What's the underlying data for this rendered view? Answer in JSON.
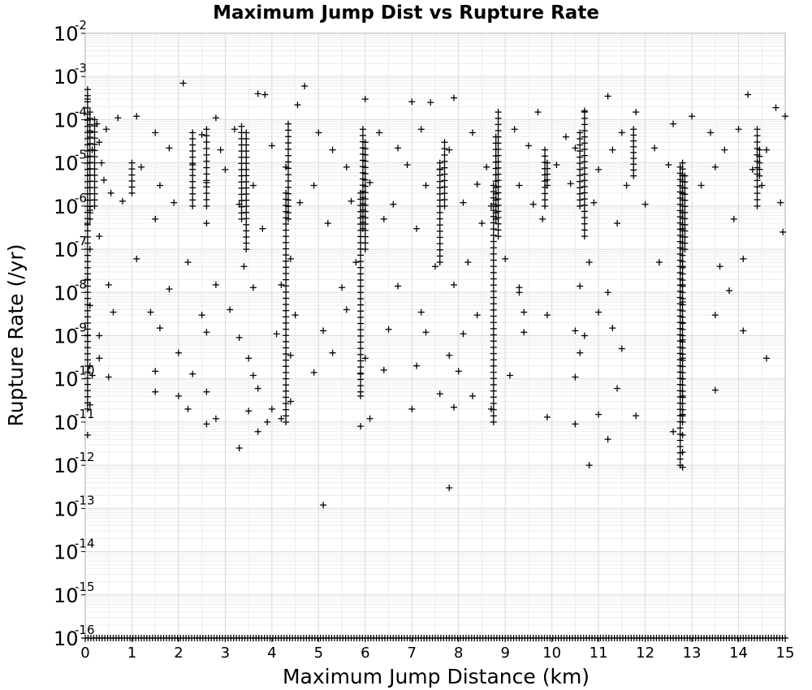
{
  "chart_data": {
    "type": "scatter",
    "title": "Maximum Jump Dist vs Rupture Rate",
    "xlabel": "Maximum Jump Distance (km)",
    "ylabel": "Rupture Rate (/yr)",
    "xlim": [
      0,
      15
    ],
    "ylim": [
      1e-16,
      0.01
    ],
    "yscale": "log",
    "grid": true,
    "marker": "plus",
    "marker_color": "#000000",
    "x_ticks": [
      "0",
      "1",
      "2",
      "3",
      "4",
      "5",
      "6",
      "7",
      "8",
      "9",
      "10",
      "11",
      "12",
      "13",
      "14",
      "15"
    ],
    "y_ticks": [
      {
        "base": "10",
        "exp": "-16"
      },
      {
        "base": "10",
        "exp": "-15"
      },
      {
        "base": "10",
        "exp": "-14"
      },
      {
        "base": "10",
        "exp": "-13"
      },
      {
        "base": "10",
        "exp": "-12"
      },
      {
        "base": "10",
        "exp": "-11"
      },
      {
        "base": "10",
        "exp": "-10"
      },
      {
        "base": "10",
        "exp": "-9"
      },
      {
        "base": "10",
        "exp": "-8"
      },
      {
        "base": "10",
        "exp": "-7"
      },
      {
        "base": "10",
        "exp": "-6"
      },
      {
        "base": "10",
        "exp": "-5"
      },
      {
        "base": "10",
        "exp": "-4"
      },
      {
        "base": "10",
        "exp": "-3"
      },
      {
        "base": "10",
        "exp": "-2"
      }
    ],
    "points": [
      [
        2.1,
        0.0007
      ],
      [
        4.7,
        0.0006
      ],
      [
        3.7,
        0.0004
      ],
      [
        3.85,
        0.00038
      ],
      [
        7.0,
        0.00026
      ],
      [
        7.4,
        0.00025
      ],
      [
        7.9,
        0.00032
      ],
      [
        11.2,
        0.00035
      ],
      [
        14.2,
        0.00038
      ],
      [
        6.0,
        0.0003
      ],
      [
        4.55,
        0.00022
      ],
      [
        1.1,
        0.00012
      ],
      [
        0.7,
        0.00011
      ],
      [
        2.8,
        0.00011
      ],
      [
        9.7,
        0.00015
      ],
      [
        10.7,
        0.00016
      ],
      [
        11.8,
        0.00015
      ],
      [
        14.8,
        0.00019
      ],
      [
        15.0,
        0.00012
      ],
      [
        13.0,
        0.00012
      ],
      [
        12.6,
        8e-05
      ],
      [
        1.5,
        5e-05
      ],
      [
        2.5,
        4.5e-05
      ],
      [
        3.2,
        6e-05
      ],
      [
        5.0,
        5e-05
      ],
      [
        6.3,
        5e-05
      ],
      [
        7.2,
        6e-05
      ],
      [
        8.3,
        5e-05
      ],
      [
        9.2,
        6e-05
      ],
      [
        10.3,
        4e-05
      ],
      [
        11.5,
        5e-05
      ],
      [
        13.4,
        5e-05
      ],
      [
        14.0,
        6e-05
      ],
      [
        1.8,
        2.2e-05
      ],
      [
        2.9,
        2e-05
      ],
      [
        4.0,
        2.5e-05
      ],
      [
        5.3,
        2e-05
      ],
      [
        6.7,
        2.2e-05
      ],
      [
        7.8,
        2e-05
      ],
      [
        9.5,
        2.5e-05
      ],
      [
        10.5,
        2.2e-05
      ],
      [
        11.3,
        2e-05
      ],
      [
        12.2,
        2.2e-05
      ],
      [
        13.7,
        2e-05
      ],
      [
        14.6,
        2e-05
      ],
      [
        1.2,
        8e-06
      ],
      [
        2.3,
        9e-06
      ],
      [
        3.0,
        7e-06
      ],
      [
        4.3,
        8e-06
      ],
      [
        5.6,
        8e-06
      ],
      [
        6.9,
        9e-06
      ],
      [
        7.6,
        7e-06
      ],
      [
        8.6,
        8e-06
      ],
      [
        10.1,
        9e-06
      ],
      [
        11.0,
        7e-06
      ],
      [
        12.5,
        9e-06
      ],
      [
        13.5,
        8e-06
      ],
      [
        14.3,
        7e-06
      ],
      [
        1.6,
        3e-06
      ],
      [
        2.6,
        3.5e-06
      ],
      [
        3.6,
        3e-06
      ],
      [
        4.9,
        3e-06
      ],
      [
        6.1,
        3.5e-06
      ],
      [
        7.3,
        3e-06
      ],
      [
        8.4,
        3.2e-06
      ],
      [
        9.3,
        3e-06
      ],
      [
        10.4,
        3.3e-06
      ],
      [
        11.6,
        3e-06
      ],
      [
        13.2,
        3e-06
      ],
      [
        14.5,
        3e-06
      ],
      [
        0.8,
        1.3e-06
      ],
      [
        1.9,
        1.2e-06
      ],
      [
        3.3,
        1.1e-06
      ],
      [
        4.6,
        1.2e-06
      ],
      [
        5.7,
        1.3e-06
      ],
      [
        6.6,
        1.1e-06
      ],
      [
        8.1,
        1.2e-06
      ],
      [
        9.6,
        1.1e-06
      ],
      [
        10.9,
        1.2e-06
      ],
      [
        12.0,
        1.1e-06
      ],
      [
        14.9,
        1.2e-06
      ],
      [
        1.5,
        5e-07
      ],
      [
        2.6,
        4e-07
      ],
      [
        3.8,
        3e-07
      ],
      [
        5.2,
        4e-07
      ],
      [
        6.4,
        5e-07
      ],
      [
        7.1,
        3e-07
      ],
      [
        8.5,
        4e-07
      ],
      [
        9.8,
        5e-07
      ],
      [
        11.4,
        4e-07
      ],
      [
        13.9,
        5e-07
      ],
      [
        14.95,
        2.5e-07
      ],
      [
        0.3,
        2e-07
      ],
      [
        1.1,
        6e-08
      ],
      [
        2.2,
        5e-08
      ],
      [
        3.4,
        4e-08
      ],
      [
        4.4,
        6e-08
      ],
      [
        5.8,
        5e-08
      ],
      [
        7.5,
        4e-08
      ],
      [
        8.2,
        5e-08
      ],
      [
        9.0,
        6e-08
      ],
      [
        10.8,
        5e-08
      ],
      [
        12.3,
        5e-08
      ],
      [
        13.6,
        4e-08
      ],
      [
        14.1,
        6e-08
      ],
      [
        0.5,
        1.5e-08
      ],
      [
        1.8,
        1.2e-08
      ],
      [
        2.8,
        1.5e-08
      ],
      [
        3.6,
        1.3e-08
      ],
      [
        4.2,
        1.5e-08
      ],
      [
        5.5,
        1.3e-08
      ],
      [
        6.7,
        1.4e-08
      ],
      [
        7.9,
        1.5e-08
      ],
      [
        9.3,
        1.3e-08
      ],
      [
        10.6,
        1.4e-08
      ],
      [
        11.2,
        1e-08
      ],
      [
        13.8,
        1.1e-08
      ],
      [
        0.6,
        3.5e-09
      ],
      [
        1.4,
        3.5e-09
      ],
      [
        2.5,
        3e-09
      ],
      [
        3.1,
        4e-09
      ],
      [
        4.5,
        3e-09
      ],
      [
        5.6,
        4e-09
      ],
      [
        7.2,
        3.5e-09
      ],
      [
        8.4,
        3e-09
      ],
      [
        9.4,
        3.5e-09
      ],
      [
        9.9,
        3e-09
      ],
      [
        11.0,
        3.5e-09
      ],
      [
        13.5,
        3e-09
      ],
      [
        0.3,
        1e-09
      ],
      [
        1.6,
        1.5e-09
      ],
      [
        2.6,
        1.2e-09
      ],
      [
        3.3,
        9e-10
      ],
      [
        4.1,
        1.1e-09
      ],
      [
        5.1,
        1.3e-09
      ],
      [
        6.5,
        1.4e-09
      ],
      [
        7.3,
        1.2e-09
      ],
      [
        8.1,
        1.1e-09
      ],
      [
        9.4,
        1.2e-09
      ],
      [
        10.5,
        1.3e-09
      ],
      [
        11.3,
        1.5e-09
      ],
      [
        14.1,
        1.3e-09
      ],
      [
        0.3,
        3e-10
      ],
      [
        2.0,
        4e-10
      ],
      [
        3.5,
        3e-10
      ],
      [
        4.4,
        3.5e-10
      ],
      [
        5.3,
        4e-10
      ],
      [
        6.0,
        3e-10
      ],
      [
        7.8,
        3.5e-10
      ],
      [
        10.6,
        4e-10
      ],
      [
        11.5,
        5e-10
      ],
      [
        14.6,
        3e-10
      ],
      [
        0.15,
        1.2e-10
      ],
      [
        0.5,
        1.1e-10
      ],
      [
        1.5,
        1.5e-10
      ],
      [
        2.3,
        1.3e-10
      ],
      [
        3.6,
        1.2e-10
      ],
      [
        4.9,
        1.4e-10
      ],
      [
        5.9,
        1.3e-10
      ],
      [
        6.4,
        1.6e-10
      ],
      [
        7.1,
        2e-10
      ],
      [
        8.0,
        1.5e-10
      ],
      [
        9.1,
        1.2e-10
      ],
      [
        10.5,
        1.1e-10
      ],
      [
        11.4,
        6e-11
      ],
      [
        13.5,
        5.5e-11
      ],
      [
        1.5,
        5e-11
      ],
      [
        2.0,
        4e-11
      ],
      [
        2.6,
        5e-11
      ],
      [
        3.7,
        6e-11
      ],
      [
        4.4,
        3e-11
      ],
      [
        5.9,
        4e-11
      ],
      [
        7.6,
        4.5e-11
      ],
      [
        8.3,
        4e-11
      ],
      [
        0.1,
        2.5e-11
      ],
      [
        2.2,
        2e-11
      ],
      [
        3.5,
        1.8e-11
      ],
      [
        4.0,
        2e-11
      ],
      [
        7.0,
        2e-11
      ],
      [
        7.9,
        2.2e-11
      ],
      [
        8.7,
        2e-11
      ],
      [
        11.0,
        1.5e-11
      ],
      [
        11.8,
        1.4e-11
      ],
      [
        2.6,
        9e-12
      ],
      [
        2.8,
        1.2e-11
      ],
      [
        3.9,
        1e-11
      ],
      [
        5.9,
        8e-12
      ],
      [
        6.1,
        1.2e-11
      ],
      [
        9.9,
        1.3e-11
      ],
      [
        10.5,
        9e-12
      ],
      [
        12.6,
        6e-12
      ],
      [
        11.2,
        4e-12
      ],
      [
        3.3,
        2.5e-12
      ],
      [
        3.7,
        6e-12
      ],
      [
        4.2,
        1.2e-11
      ],
      [
        10.8,
        1e-12
      ],
      [
        12.8,
        9e-13
      ],
      [
        7.8,
        3e-13
      ],
      [
        5.1,
        1.2e-13
      ],
      [
        9.3,
        1e-08
      ],
      [
        10.7,
        1e-09
      ],
      [
        8.7,
        1e-06
      ],
      [
        0.05,
        0.0003
      ],
      [
        0.05,
        0.0001
      ],
      [
        0.1,
        5e-05
      ],
      [
        0.15,
        2e-05
      ],
      [
        0.25,
        8e-05
      ],
      [
        0.3,
        3e-05
      ],
      [
        0.35,
        1e-05
      ],
      [
        0.4,
        4e-06
      ],
      [
        0.45,
        6e-05
      ],
      [
        0.55,
        2e-06
      ],
      [
        0.1,
        8e-07
      ],
      [
        0.05,
        4e-07
      ],
      [
        0.1,
        1e-07
      ],
      [
        0.05,
        2e-08
      ],
      [
        0.1,
        5e-09
      ],
      [
        0.05,
        1e-09
      ],
      [
        0.1,
        2e-10
      ],
      [
        0.05,
        5e-12
      ],
      [
        12.8,
        5e-06
      ],
      [
        12.8,
        2e-06
      ],
      [
        12.8,
        7e-07
      ],
      [
        12.8,
        3e-07
      ],
      [
        12.8,
        1e-07
      ],
      [
        12.8,
        4e-08
      ],
      [
        12.8,
        1.5e-08
      ],
      [
        12.8,
        6e-09
      ],
      [
        12.8,
        2e-09
      ],
      [
        12.8,
        8e-10
      ],
      [
        12.8,
        3e-10
      ],
      [
        12.8,
        1e-10
      ],
      [
        12.8,
        4e-11
      ],
      [
        12.8,
        1.5e-11
      ],
      [
        12.8,
        5e-12
      ],
      [
        12.8,
        2e-12
      ]
    ],
    "stacks": [
      [
        0.05,
        2e-11,
        0.0005
      ],
      [
        0.2,
        1e-06,
        0.0001
      ],
      [
        0.1,
        5e-07,
        0.00015
      ],
      [
        1.0,
        2e-06,
        1e-05
      ],
      [
        2.3,
        1e-06,
        5e-05
      ],
      [
        2.6,
        1e-06,
        6e-05
      ],
      [
        3.35,
        5e-07,
        7e-05
      ],
      [
        3.45,
        1e-07,
        5e-05
      ],
      [
        4.3,
        1e-11,
        2e-06
      ],
      [
        4.35,
        5e-07,
        8e-05
      ],
      [
        5.9,
        5e-11,
        2e-06
      ],
      [
        5.95,
        3e-07,
        6e-05
      ],
      [
        6.0,
        1e-07,
        3e-05
      ],
      [
        7.6,
        5e-08,
        1e-05
      ],
      [
        7.7,
        1e-06,
        3e-05
      ],
      [
        8.75,
        1e-11,
        3e-06
      ],
      [
        8.8,
        5e-07,
        4e-05
      ],
      [
        8.85,
        2e-07,
        0.00015
      ],
      [
        9.85,
        1e-06,
        2e-05
      ],
      [
        9.9,
        3e-06,
        1e-05
      ],
      [
        10.6,
        1e-06,
        5e-05
      ],
      [
        10.7,
        2e-07,
        0.00015
      ],
      [
        11.75,
        5e-06,
        6e-05
      ],
      [
        12.75,
        1e-12,
        8e-06
      ],
      [
        12.8,
        1e-11,
        1e-05
      ],
      [
        12.85,
        1e-07,
        5e-06
      ],
      [
        14.4,
        1e-06,
        6e-05
      ],
      [
        14.45,
        5e-06,
        2e-05
      ]
    ],
    "floor_rate": 1e-16,
    "floor_range": [
      0,
      15
    ]
  }
}
